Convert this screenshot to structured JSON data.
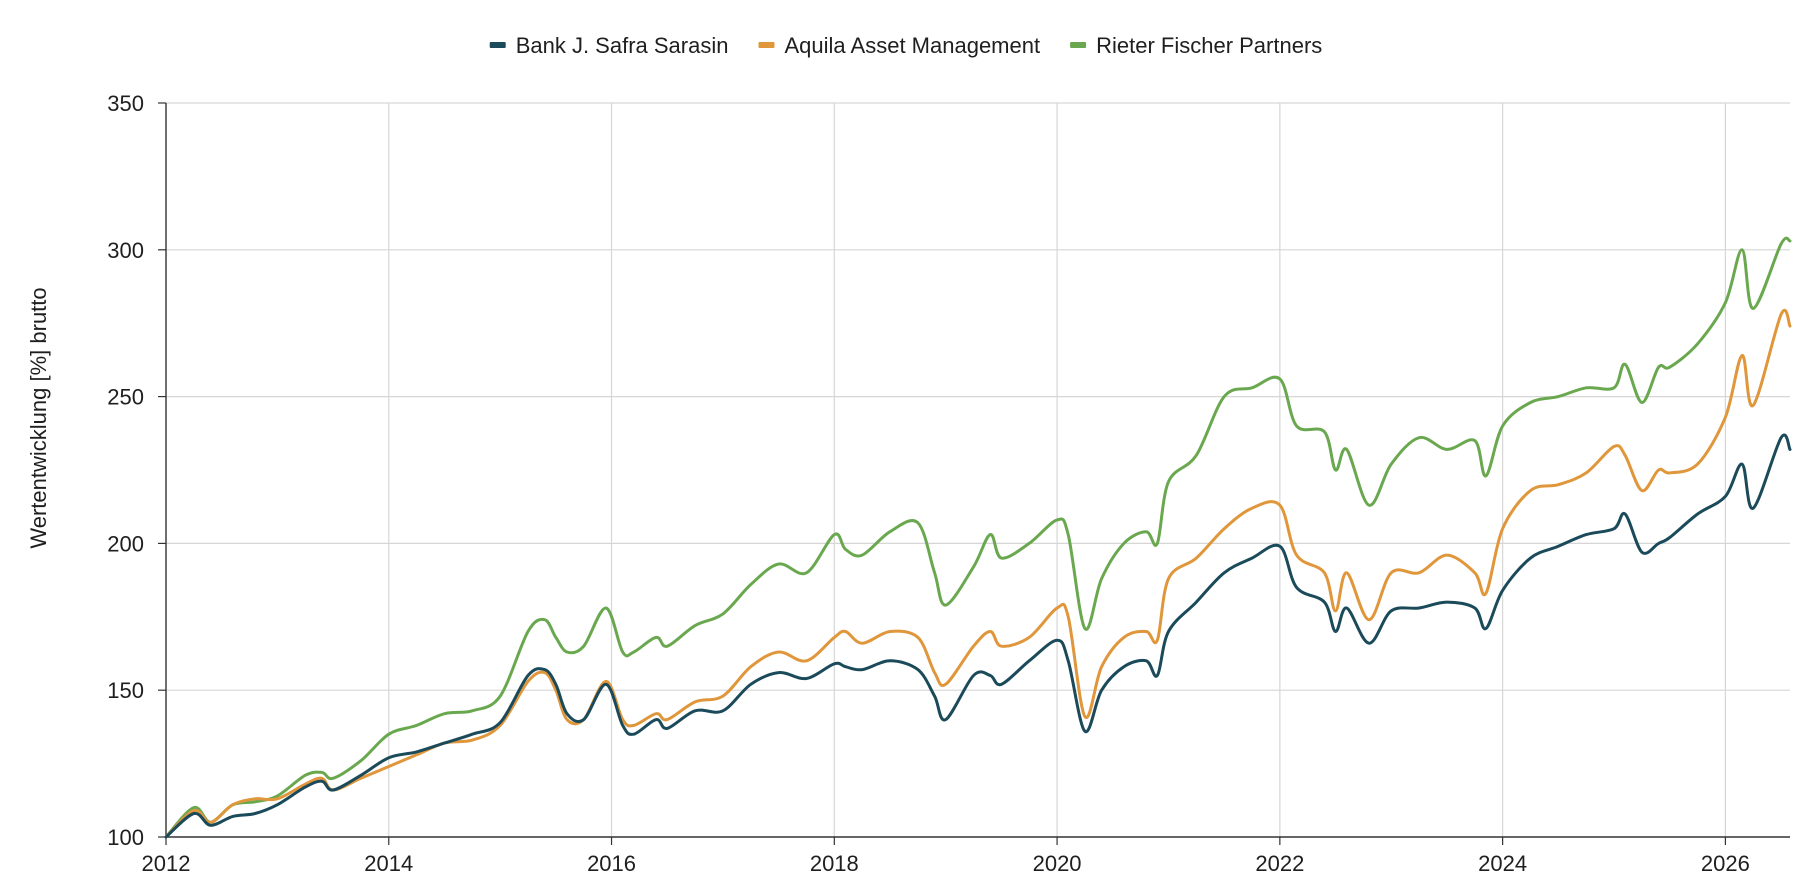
{
  "chart_data": {
    "type": "line",
    "title": "",
    "xlabel": "",
    "ylabel": "Wertentwicklung [%] brutto",
    "xlim": [
      2012,
      2026.58
    ],
    "ylim": [
      100,
      350
    ],
    "x_ticks": [
      2012,
      2014,
      2016,
      2018,
      2020,
      2022,
      2024,
      2026
    ],
    "x_tick_labels": [
      "2012",
      "2014",
      "2016",
      "2018",
      "2020",
      "2022",
      "2024",
      "2026"
    ],
    "y_ticks": [
      100,
      150,
      200,
      250,
      300,
      350
    ],
    "y_tick_labels": [
      "100",
      "150",
      "200",
      "250",
      "300",
      "350"
    ],
    "grid": true,
    "legend_position": "top-center",
    "x": [
      2012.0,
      2012.25,
      2012.4,
      2012.6,
      2012.8,
      2013.0,
      2013.25,
      2013.4,
      2013.5,
      2013.75,
      2014.0,
      2014.25,
      2014.5,
      2014.75,
      2015.0,
      2015.25,
      2015.4,
      2015.5,
      2015.6,
      2015.75,
      2015.95,
      2016.1,
      2016.2,
      2016.4,
      2016.5,
      2016.75,
      2017.0,
      2017.25,
      2017.5,
      2017.75,
      2018.0,
      2018.1,
      2018.25,
      2018.5,
      2018.75,
      2018.9,
      2019.0,
      2019.25,
      2019.4,
      2019.5,
      2019.75,
      2020.0,
      2020.1,
      2020.25,
      2020.4,
      2020.6,
      2020.8,
      2020.9,
      2021.0,
      2021.25,
      2021.5,
      2021.75,
      2022.0,
      2022.15,
      2022.4,
      2022.5,
      2022.6,
      2022.8,
      2023.0,
      2023.25,
      2023.5,
      2023.75,
      2023.85,
      2024.0,
      2024.25,
      2024.5,
      2024.75,
      2025.0,
      2025.1,
      2025.25,
      2025.4,
      2025.5,
      2025.75,
      2026.0,
      2026.15,
      2026.25,
      2026.5,
      2026.58
    ],
    "series": [
      {
        "name": "Bank J. Safra Sarasin",
        "color": "#1b4a5a",
        "values": [
          100,
          108,
          104,
          107,
          108,
          111,
          117,
          119,
          116,
          121,
          127,
          129,
          132,
          135,
          139,
          155,
          157,
          152,
          142,
          140,
          152,
          138,
          135,
          140,
          137,
          143,
          143,
          152,
          156,
          154,
          159,
          158,
          157,
          160,
          157,
          148,
          140,
          155,
          155,
          152,
          160,
          167,
          160,
          136,
          150,
          158,
          160,
          155,
          170,
          180,
          190,
          195,
          199,
          185,
          180,
          170,
          178,
          166,
          177,
          178,
          180,
          178,
          171,
          184,
          195,
          199,
          203,
          205,
          210,
          197,
          200,
          202,
          210,
          216,
          227,
          212,
          236,
          232
        ]
      },
      {
        "name": "Aquila Asset Management",
        "color": "#e0963a",
        "values": [
          100,
          109,
          105,
          111,
          113,
          113,
          118,
          120,
          116,
          120,
          124,
          128,
          132,
          133,
          138,
          153,
          156,
          150,
          140,
          140,
          153,
          140,
          138,
          142,
          140,
          146,
          148,
          158,
          163,
          160,
          168,
          170,
          166,
          170,
          168,
          156,
          152,
          165,
          170,
          165,
          168,
          178,
          175,
          141,
          158,
          168,
          170,
          167,
          188,
          195,
          205,
          212,
          213,
          196,
          190,
          177,
          190,
          174,
          190,
          190,
          196,
          190,
          183,
          205,
          218,
          220,
          224,
          233,
          230,
          218,
          225,
          224,
          227,
          243,
          264,
          247,
          278,
          274
        ]
      },
      {
        "name": "Rieter Fischer Partners",
        "color": "#6aa84f",
        "values": [
          100,
          110,
          105,
          111,
          112,
          114,
          121,
          122,
          120,
          126,
          135,
          138,
          142,
          143,
          148,
          170,
          174,
          168,
          163,
          165,
          178,
          163,
          163,
          168,
          165,
          172,
          176,
          186,
          193,
          190,
          203,
          198,
          196,
          204,
          207,
          190,
          179,
          192,
          203,
          195,
          200,
          208,
          203,
          171,
          188,
          200,
          204,
          200,
          221,
          230,
          250,
          253,
          256,
          240,
          238,
          225,
          232,
          213,
          227,
          236,
          232,
          235,
          223,
          240,
          248,
          250,
          253,
          253,
          261,
          248,
          260,
          260,
          268,
          282,
          300,
          280,
          302,
          303
        ]
      }
    ]
  }
}
